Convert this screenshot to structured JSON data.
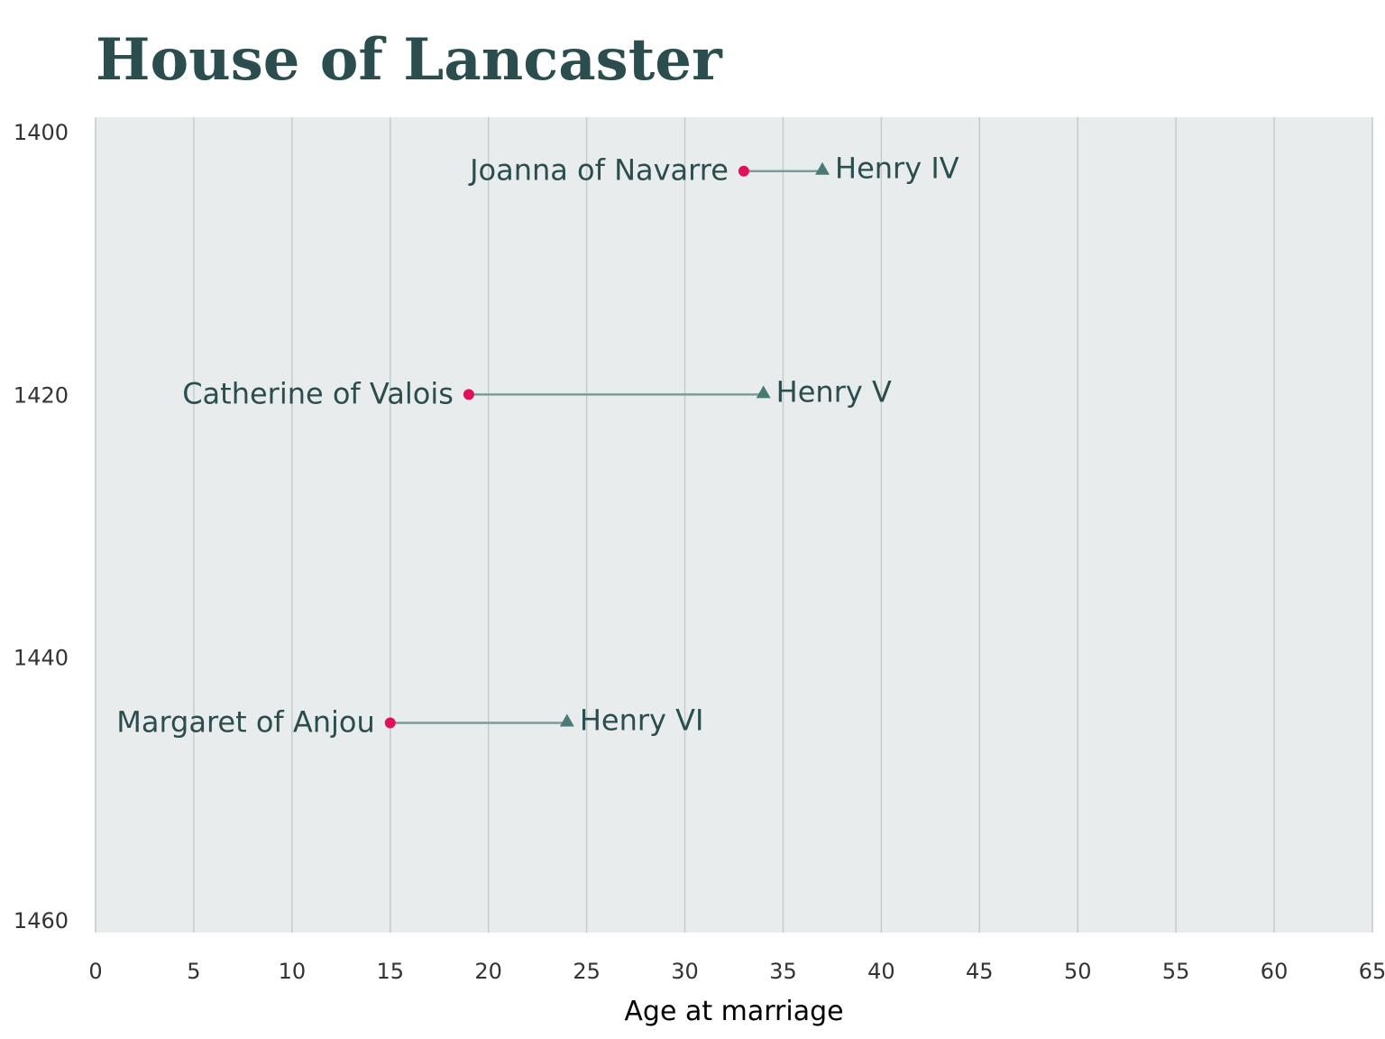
{
  "chart_data": {
    "type": "scatter",
    "title": "House of Lancaster",
    "xlabel": "Age at marriage",
    "ylabel": "",
    "xlim": [
      0,
      65
    ],
    "ylim": [
      1400,
      1460
    ],
    "y_inverted": true,
    "x_ticks": [
      0,
      5,
      10,
      15,
      20,
      25,
      30,
      35,
      40,
      45,
      50,
      55,
      60,
      65
    ],
    "y_ticks": [
      1400,
      1420,
      1440,
      1460
    ],
    "grid": "vertical",
    "series": [
      {
        "marker": "circle",
        "color": "#e0105a",
        "points": [
          {
            "label": "Joanna of Navarre",
            "x": 33,
            "y": 1403
          },
          {
            "label": "Catherine of Valois",
            "x": 19,
            "y": 1420
          },
          {
            "label": "Margaret of Anjou",
            "x": 15,
            "y": 1445
          }
        ]
      },
      {
        "marker": "triangle",
        "color": "#4a7a78",
        "points": [
          {
            "label": "Henry IV",
            "x": 37,
            "y": 1403
          },
          {
            "label": "Henry V",
            "x": 34,
            "y": 1420
          },
          {
            "label": "Henry VI",
            "x": 24,
            "y": 1445
          }
        ]
      }
    ],
    "colors": {
      "panel": "#e8eced",
      "grid": "#c4cccc",
      "connector": "#7f9a98",
      "text": "#2b4d4d"
    }
  }
}
